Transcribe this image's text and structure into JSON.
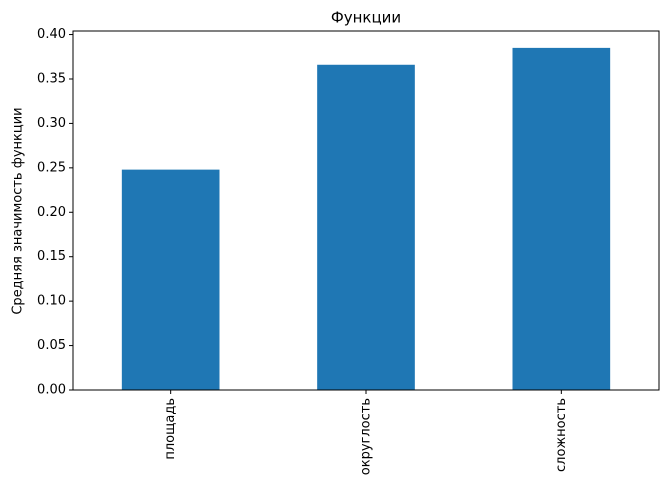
{
  "chart_data": {
    "type": "bar",
    "title": "Функции",
    "ylabel": "Средняя значимость функции",
    "categories": [
      "площадь",
      "округлость",
      "сложность"
    ],
    "values": [
      0.248,
      0.366,
      0.385
    ],
    "color": "#1f77b4",
    "ylim": [
      0,
      0.404
    ],
    "yticks": [
      {
        "value": 0,
        "label": "0.00"
      },
      {
        "value": 0.05,
        "label": "0.05"
      },
      {
        "value": 0.1,
        "label": "0.10"
      },
      {
        "value": 0.15,
        "label": "0.15"
      },
      {
        "value": 0.2,
        "label": "0.20"
      },
      {
        "value": 0.25,
        "label": "0.25"
      },
      {
        "value": 0.3,
        "label": "0.30"
      },
      {
        "value": 0.35,
        "label": "0.35"
      },
      {
        "value": 0.4,
        "label": "0.40"
      }
    ],
    "grid": false
  }
}
